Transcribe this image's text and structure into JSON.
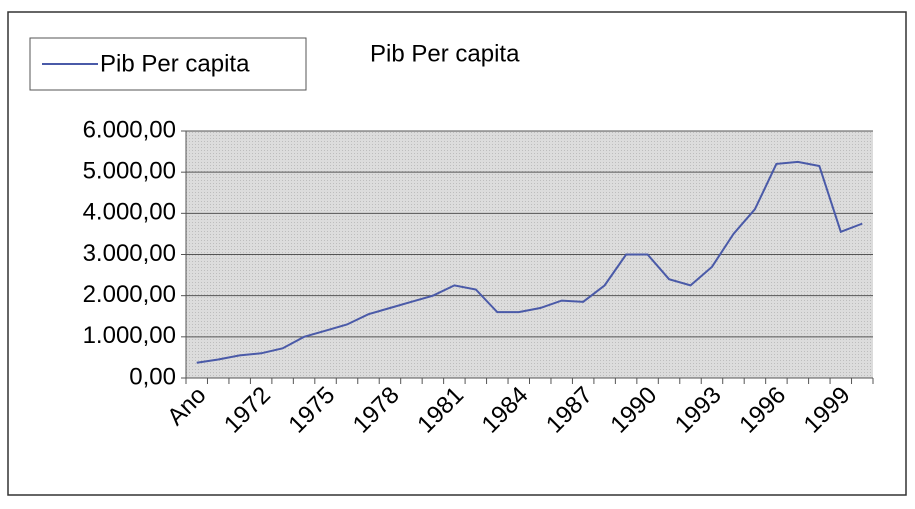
{
  "chart_data": {
    "type": "line",
    "title": "Pib Per capita",
    "categories": [
      "Ano",
      null,
      null,
      "1972",
      null,
      null,
      "1975",
      null,
      null,
      "1978",
      null,
      null,
      "1981",
      null,
      null,
      "1984",
      null,
      null,
      "1987",
      null,
      null,
      "1990",
      null,
      null,
      "1993",
      null,
      null,
      "1996",
      null,
      null,
      "1999",
      null
    ],
    "series": [
      {
        "name": "Pib Per capita",
        "color": "#4a5aa8",
        "values": [
          370,
          450,
          550,
          600,
          720,
          1000,
          1150,
          1300,
          1550,
          1700,
          1850,
          2000,
          2250,
          2150,
          1600,
          1600,
          1700,
          1880,
          1850,
          2250,
          3000,
          3000,
          2400,
          2250,
          2700,
          3500,
          4100,
          5200,
          5250,
          5150,
          3550,
          3750
        ]
      }
    ],
    "ylim": [
      0,
      6000
    ],
    "yticks": [
      {
        "value": 0,
        "label": "0,00"
      },
      {
        "value": 1000,
        "label": "1.000,00"
      },
      {
        "value": 2000,
        "label": "2.000,00"
      },
      {
        "value": 3000,
        "label": "3.000,00"
      },
      {
        "value": 4000,
        "label": "4.000,00"
      },
      {
        "value": 5000,
        "label": "5.000,00"
      },
      {
        "value": 6000,
        "label": "6.000,00"
      }
    ],
    "grid": true,
    "legend": "top-left"
  }
}
